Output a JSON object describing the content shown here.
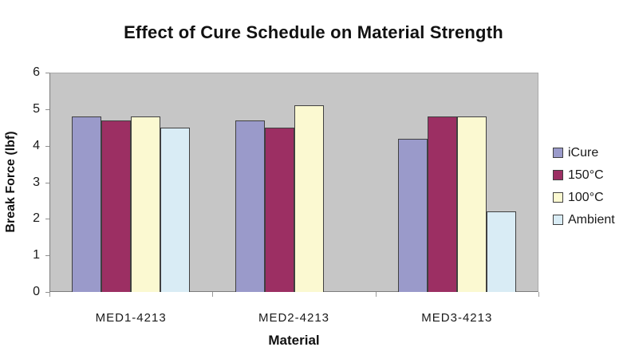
{
  "chart_data": {
    "type": "bar",
    "title": "Effect of Cure Schedule on Material Strength",
    "xlabel": "Material",
    "ylabel": "Break Force (lbf)",
    "ylim": [
      0,
      6
    ],
    "yticks": [
      0,
      1,
      2,
      3,
      4,
      5,
      6
    ],
    "categories": [
      "MED1-4213",
      "MED2-4213",
      "MED3-4213"
    ],
    "series": [
      {
        "name": "iCure",
        "color": "#9A9ACA",
        "values": [
          4.8,
          4.7,
          4.2
        ]
      },
      {
        "name": "150°C",
        "color": "#9C2F63",
        "values": [
          4.7,
          4.5,
          4.8
        ]
      },
      {
        "name": "100°C",
        "color": "#FBF9D1",
        "values": [
          4.8,
          5.1,
          4.8
        ]
      },
      {
        "name": "Ambient",
        "color": "#D9ECF5",
        "values": [
          4.5,
          null,
          2.2
        ]
      }
    ],
    "legend_position": "right",
    "grid": false,
    "plot_bg": "#C6C6C6",
    "bar_border_color": "#404040"
  }
}
